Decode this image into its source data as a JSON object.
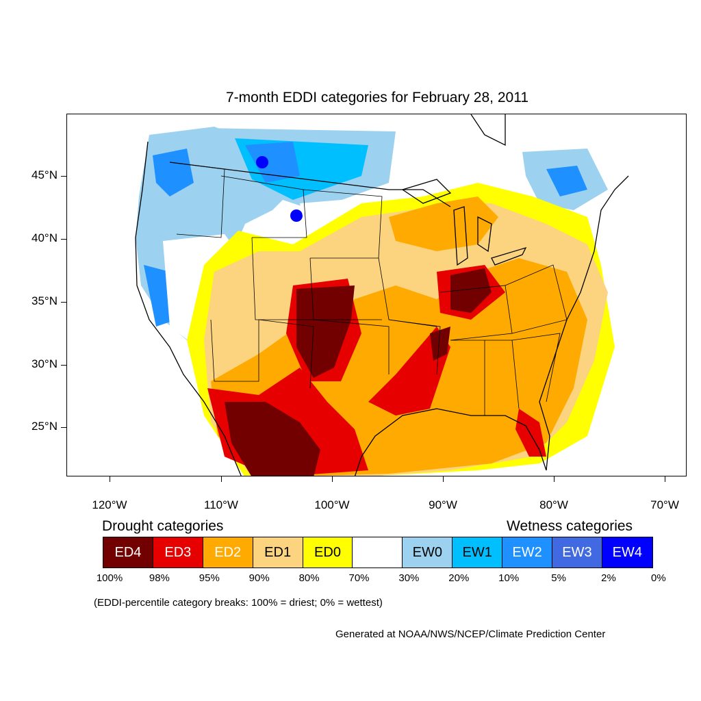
{
  "title": "7-month EDDI categories for February 28, 2011",
  "axes": {
    "x_labels": [
      "120°W",
      "110°W",
      "100°W",
      "90°W",
      "80°W",
      "70°W"
    ],
    "y_labels": [
      "45°N",
      "40°N",
      "35°N",
      "30°N",
      "25°N"
    ]
  },
  "legend": {
    "drought_heading": "Drought categories",
    "wetness_heading": "Wetness categories",
    "categories": [
      {
        "label": "ED4",
        "color": "#730000",
        "text_color": "#ffffff"
      },
      {
        "label": "ED3",
        "color": "#e60000",
        "text_color": "#ffffff"
      },
      {
        "label": "ED2",
        "color": "#ffaa00",
        "text_color": "#ffffff"
      },
      {
        "label": "ED1",
        "color": "#fcd37f",
        "text_color": "#000000"
      },
      {
        "label": "ED0",
        "color": "#ffff00",
        "text_color": "#000000"
      },
      {
        "label": "",
        "color": "#ffffff",
        "text_color": "#000000"
      },
      {
        "label": "EW0",
        "color": "#9dd1f0",
        "text_color": "#000000"
      },
      {
        "label": "EW1",
        "color": "#00bfff",
        "text_color": "#000000"
      },
      {
        "label": "EW2",
        "color": "#1e90ff",
        "text_color": "#ffffff"
      },
      {
        "label": "EW3",
        "color": "#4169e1",
        "text_color": "#ffffff"
      },
      {
        "label": "EW4",
        "color": "#0000ff",
        "text_color": "#ffffff"
      }
    ],
    "breaks": [
      "100%",
      "98%",
      "95%",
      "90%",
      "80%",
      "70%",
      "30%",
      "20%",
      "10%",
      "5%",
      "2%",
      "0%"
    ]
  },
  "note": "(EDDI-percentile category breaks: 100% = driest; 0% = wettest)",
  "credit": "Generated at NOAA/NWS/NCEP/Climate Prediction Center"
}
